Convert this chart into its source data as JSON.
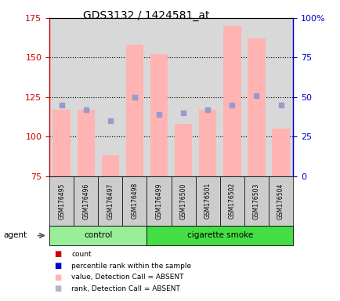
{
  "title": "GDS3132 / 1424581_at",
  "samples": [
    "GSM176495",
    "GSM176496",
    "GSM176497",
    "GSM176498",
    "GSM176499",
    "GSM176500",
    "GSM176501",
    "GSM176502",
    "GSM176503",
    "GSM176504"
  ],
  "bar_values": [
    117,
    117,
    88,
    158,
    152,
    108,
    117,
    170,
    162,
    105
  ],
  "rank_dots": [
    120,
    117,
    110,
    125,
    114,
    115,
    117,
    120,
    126,
    120
  ],
  "ylim_left": [
    75,
    175
  ],
  "ylim_right": [
    0,
    100
  ],
  "yticks_left": [
    75,
    100,
    125,
    150,
    175
  ],
  "yticks_right": [
    0,
    25,
    50,
    75,
    100
  ],
  "bar_color": "#ffb3b3",
  "dot_color": "#9999cc",
  "col_bg_color": "#d8d8d8",
  "groups": [
    {
      "label": "control",
      "start": 0,
      "end": 4,
      "color": "#99ee99"
    },
    {
      "label": "cigarette smoke",
      "start": 4,
      "end": 10,
      "color": "#44dd44"
    }
  ],
  "agent_label": "agent",
  "legend": [
    {
      "color": "#cc0000",
      "label": "count"
    },
    {
      "color": "#0000cc",
      "label": "percentile rank within the sample"
    },
    {
      "color": "#ffb3b3",
      "label": "value, Detection Call = ABSENT"
    },
    {
      "color": "#b3b3cc",
      "label": "rank, Detection Call = ABSENT"
    }
  ],
  "tick_color_left": "#cc0000",
  "tick_color_right": "#0000cc"
}
